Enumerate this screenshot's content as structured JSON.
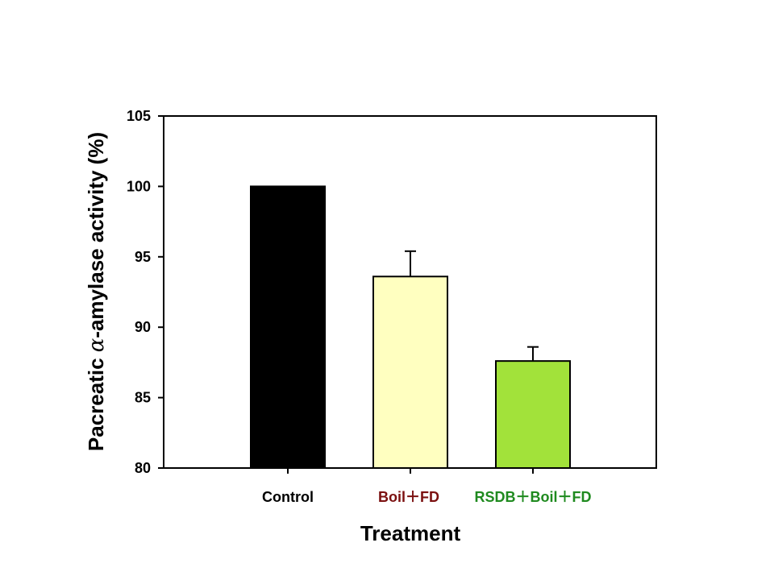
{
  "chart_data": {
    "type": "bar",
    "categories": [
      "Control",
      "Boil＋FD",
      "RSDB＋Boil＋FD"
    ],
    "category_colors": [
      "#000000",
      "#7b1010",
      "#1f8a1f"
    ],
    "values": [
      100.0,
      93.6,
      87.6
    ],
    "errors": [
      0,
      1.8,
      1.0
    ],
    "bar_colors": [
      "#000000",
      "#ffffc0",
      "#a2e23a"
    ],
    "xlabel": "Treatment",
    "ylabel_prefix": "Pacreatic ",
    "ylabel_symbol": "α",
    "ylabel_suffix": "-amylase activity (%)",
    "ylim": [
      80,
      105
    ],
    "yticks": [
      80,
      85,
      90,
      95,
      100,
      105
    ],
    "grid": false
  }
}
